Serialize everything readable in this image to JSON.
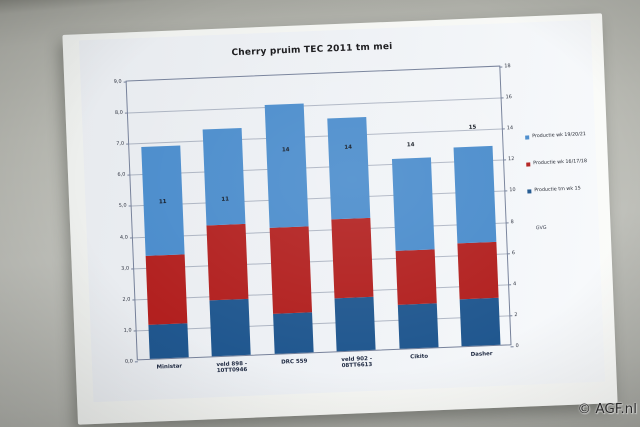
{
  "watermark": "© AGF.nl",
  "chart_data": {
    "type": "bar",
    "stacked": true,
    "title": "Cherry pruim TEC 2011 tm mei",
    "categories": [
      "Ministar",
      "veld 898 - 10TT0946",
      "DRC 559",
      "veld 902 - 08TT6613",
      "Cikito",
      "Dasher"
    ],
    "series": [
      {
        "name": "Productie tm wk 15",
        "color": "#20578f",
        "values": [
          1.1,
          1.8,
          1.3,
          1.7,
          1.4,
          1.5
        ]
      },
      {
        "name": "Productie wk 16/17/18",
        "color": "#b2201f",
        "values": [
          2.2,
          2.4,
          2.75,
          2.55,
          1.75,
          1.8
        ]
      },
      {
        "name": "Productie wk 19/20/21",
        "color": "#4a8ccc",
        "values": [
          3.5,
          3.1,
          3.95,
          3.25,
          2.95,
          3.1
        ]
      }
    ],
    "point_labels": {
      "name": "GVG",
      "axis": "right",
      "values": [
        11,
        11,
        14,
        14,
        14,
        15
      ]
    },
    "left_axis": {
      "min": 0,
      "max": 9,
      "step": 1,
      "tick_labels_top_down": [
        "9,0",
        "8,0",
        "7,0",
        "6,0",
        "5,0",
        "4,0",
        "3,0",
        "2,0",
        "1,0",
        "0,0"
      ]
    },
    "right_axis": {
      "min": 0,
      "max": 18,
      "step": 2,
      "tick_labels_top_down": [
        "18",
        "16",
        "14",
        "12",
        "10",
        "8",
        "6",
        "4",
        "2",
        "0"
      ]
    },
    "legend": {
      "position": "right",
      "entries_top_down": [
        {
          "label": "Productie wk 19/20/21",
          "color": "#4a8ccc"
        },
        {
          "label": "Productie wk 16/17/18",
          "color": "#b2201f"
        },
        {
          "label": "Productie tm wk 15",
          "color": "#20578f"
        }
      ],
      "extra_label": "GVG"
    },
    "grid": true
  }
}
